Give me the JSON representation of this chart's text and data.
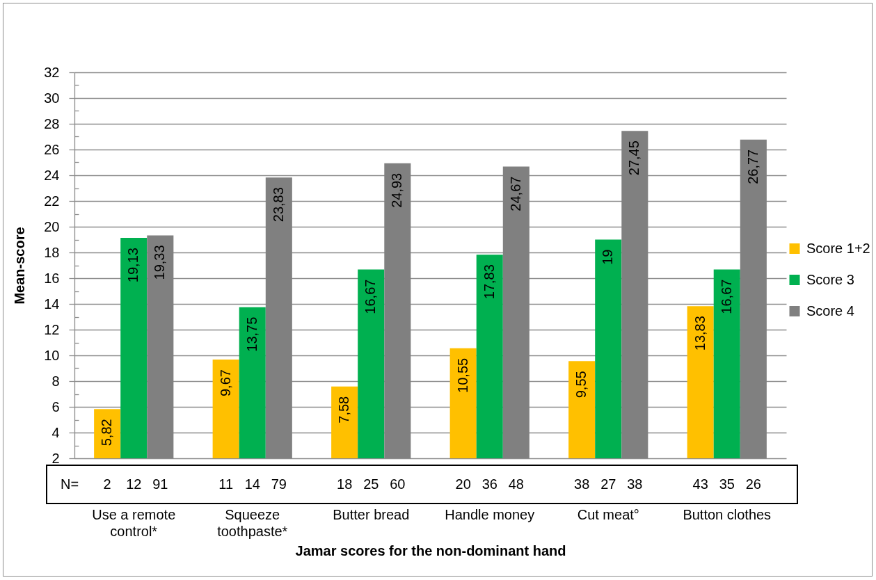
{
  "chart_data": {
    "type": "bar",
    "xlabel": "Jamar scores for the non-dominant hand",
    "ylabel": "Mean-score",
    "categories": [
      "Use a remote control*",
      "Squeeze toothpaste*",
      "Butter bread",
      "Handle money",
      "Cut meat°",
      "Button clothes"
    ],
    "series": [
      {
        "name": "Score 1+2",
        "color": "#ffc000",
        "values": [
          5.82,
          9.67,
          7.58,
          10.55,
          9.55,
          13.83
        ],
        "value_labels": [
          "5,82",
          "9,67",
          "7,58",
          "10,55",
          "9,55",
          "13,83"
        ]
      },
      {
        "name": "Score 3",
        "color": "#00b050",
        "values": [
          19.13,
          13.75,
          16.67,
          17.83,
          19,
          16.67
        ],
        "value_labels": [
          "19,13",
          "13,75",
          "16,67",
          "17,83",
          "19",
          "16,67"
        ]
      },
      {
        "name": "Score 4",
        "color": "#808080",
        "values": [
          19.33,
          23.83,
          24.93,
          24.67,
          27.45,
          26.77
        ],
        "value_labels": [
          "19,33",
          "23,83",
          "24,93",
          "24,67",
          "27,45",
          "26,77"
        ]
      }
    ],
    "ylim": [
      2,
      32
    ],
    "yticks": [
      2,
      {
        "value": 3,
        "label": null
      },
      4,
      {
        "value": 5,
        "label": null
      },
      6,
      {
        "value": 7,
        "label": null
      },
      8,
      {
        "value": 9,
        "label": null
      },
      10,
      {
        "value": 11,
        "label": null
      },
      12,
      {
        "value": 13,
        "label": null
      },
      14,
      {
        "value": 15,
        "label": null
      },
      16,
      {
        "value": 17,
        "label": null
      },
      18,
      {
        "value": 19,
        "label": null
      },
      20,
      {
        "value": 21,
        "label": null
      },
      22,
      {
        "value": 23,
        "label": null
      },
      24,
      {
        "value": 25,
        "label": null
      },
      26,
      {
        "value": 27,
        "label": null
      },
      28,
      {
        "value": 29,
        "label": null
      },
      30,
      {
        "value": 31,
        "label": null
      },
      32
    ],
    "grid": "y",
    "legend": "right",
    "annotations": [
      "N=",
      "2",
      "12",
      "91",
      "11",
      "14",
      "79",
      "18",
      "25",
      "60",
      "20",
      "36",
      "48",
      "38",
      "27",
      "38",
      "43",
      "35",
      "26"
    ]
  }
}
